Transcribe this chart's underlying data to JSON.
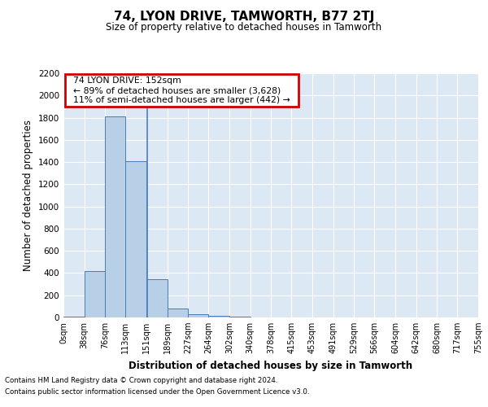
{
  "title": "74, LYON DRIVE, TAMWORTH, B77 2TJ",
  "subtitle": "Size of property relative to detached houses in Tamworth",
  "xlabel": "Distribution of detached houses by size in Tamworth",
  "ylabel": "Number of detached properties",
  "footnote1": "Contains HM Land Registry data © Crown copyright and database right 2024.",
  "footnote2": "Contains public sector information licensed under the Open Government Licence v3.0.",
  "annotation_line1": "74 LYON DRIVE: 152sqm",
  "annotation_line2": "← 89% of detached houses are smaller (3,628)",
  "annotation_line3": "11% of semi-detached houses are larger (442) →",
  "property_size": 152,
  "bar_edges": [
    0,
    38,
    76,
    113,
    151,
    189,
    227,
    264,
    302,
    340,
    378,
    415,
    453,
    491,
    529,
    566,
    604,
    642,
    680,
    717,
    755
  ],
  "bar_heights": [
    10,
    420,
    1810,
    1405,
    345,
    80,
    30,
    15,
    5,
    0,
    0,
    0,
    0,
    0,
    0,
    0,
    0,
    0,
    0,
    0
  ],
  "bar_color": "#b8cfe8",
  "bar_edge_color": "#4a7db5",
  "vline_color": "#4a7db5",
  "bg_color": "#dde8f5",
  "grid_color": "#ffffff",
  "annotation_box_color": "#cc0000",
  "ylim": [
    0,
    2200
  ],
  "yticks": [
    0,
    200,
    400,
    600,
    800,
    1000,
    1200,
    1400,
    1600,
    1800,
    2000,
    2200
  ]
}
